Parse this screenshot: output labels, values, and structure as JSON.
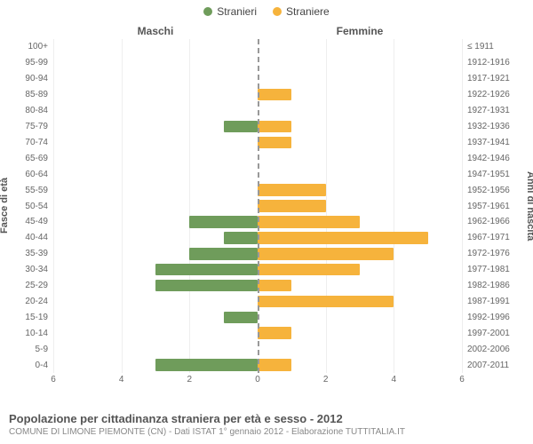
{
  "legend": {
    "male": "Stranieri",
    "female": "Straniere"
  },
  "columns": {
    "left": "Maschi",
    "right": "Femmine"
  },
  "axis_titles": {
    "left": "Fasce di età",
    "right": "Anni di nascita"
  },
  "colors": {
    "male": "#6f9c5b",
    "female": "#f6b33c",
    "grid": "#eeeeee",
    "center_dash": "#999999",
    "bg": "#ffffff"
  },
  "chart": {
    "type": "population-pyramid",
    "x_max": 6,
    "x_ticks": [
      6,
      4,
      2,
      0,
      2,
      4,
      6
    ],
    "rows": [
      {
        "age": "100+",
        "birth": "≤ 1911",
        "m": 0,
        "f": 0
      },
      {
        "age": "95-99",
        "birth": "1912-1916",
        "m": 0,
        "f": 0
      },
      {
        "age": "90-94",
        "birth": "1917-1921",
        "m": 0,
        "f": 0
      },
      {
        "age": "85-89",
        "birth": "1922-1926",
        "m": 0,
        "f": 1
      },
      {
        "age": "80-84",
        "birth": "1927-1931",
        "m": 0,
        "f": 0
      },
      {
        "age": "75-79",
        "birth": "1932-1936",
        "m": 1,
        "f": 1
      },
      {
        "age": "70-74",
        "birth": "1937-1941",
        "m": 0,
        "f": 1
      },
      {
        "age": "65-69",
        "birth": "1942-1946",
        "m": 0,
        "f": 0
      },
      {
        "age": "60-64",
        "birth": "1947-1951",
        "m": 0,
        "f": 0
      },
      {
        "age": "55-59",
        "birth": "1952-1956",
        "m": 0,
        "f": 2
      },
      {
        "age": "50-54",
        "birth": "1957-1961",
        "m": 0,
        "f": 2
      },
      {
        "age": "45-49",
        "birth": "1962-1966",
        "m": 2,
        "f": 3
      },
      {
        "age": "40-44",
        "birth": "1967-1971",
        "m": 1,
        "f": 5
      },
      {
        "age": "35-39",
        "birth": "1972-1976",
        "m": 2,
        "f": 4
      },
      {
        "age": "30-34",
        "birth": "1977-1981",
        "m": 3,
        "f": 3
      },
      {
        "age": "25-29",
        "birth": "1982-1986",
        "m": 3,
        "f": 1
      },
      {
        "age": "20-24",
        "birth": "1987-1991",
        "m": 0,
        "f": 4
      },
      {
        "age": "15-19",
        "birth": "1992-1996",
        "m": 1,
        "f": 0
      },
      {
        "age": "10-14",
        "birth": "1997-2001",
        "m": 0,
        "f": 1
      },
      {
        "age": "5-9",
        "birth": "2002-2006",
        "m": 0,
        "f": 0
      },
      {
        "age": "0-4",
        "birth": "2007-2011",
        "m": 3,
        "f": 1
      }
    ]
  },
  "footer": {
    "title": "Popolazione per cittadinanza straniera per età e sesso - 2012",
    "subtitle": "COMUNE DI LIMONE PIEMONTE (CN) - Dati ISTAT 1° gennaio 2012 - Elaborazione TUTTITALIA.IT"
  }
}
